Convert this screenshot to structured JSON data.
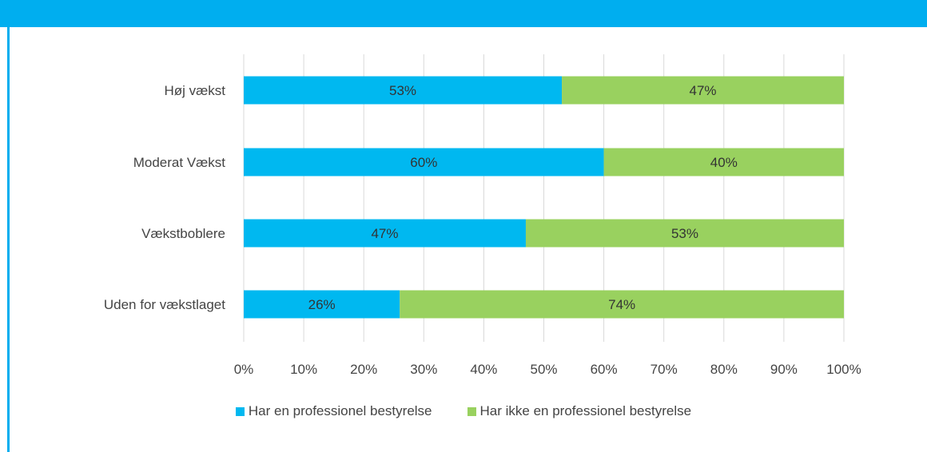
{
  "header": {
    "text": "",
    "color": "#00aeef"
  },
  "chart_data": {
    "type": "bar",
    "orientation": "horizontal",
    "stacked": true,
    "categories": [
      "Høj vækst",
      "Moderat Vækst",
      "Vækstboblere",
      "Uden for vækstlaget"
    ],
    "series": [
      {
        "name": "Har en professionel bestyrelse",
        "values": [
          53,
          60,
          47,
          26
        ],
        "labels": [
          "53%",
          "60%",
          "47%",
          "26%"
        ],
        "color": "#00b8f0"
      },
      {
        "name": "Har ikke en professionel bestyrelse",
        "values": [
          47,
          40,
          53,
          74
        ],
        "labels": [
          "47%",
          "40%",
          "53%",
          "74%"
        ],
        "color": "#99d15f"
      }
    ],
    "xlim": [
      0,
      100
    ],
    "xticks": [
      "0%",
      "10%",
      "20%",
      "30%",
      "40%",
      "50%",
      "60%",
      "70%",
      "80%",
      "90%",
      "100%"
    ],
    "grid": true,
    "legend": "bottom-center"
  }
}
